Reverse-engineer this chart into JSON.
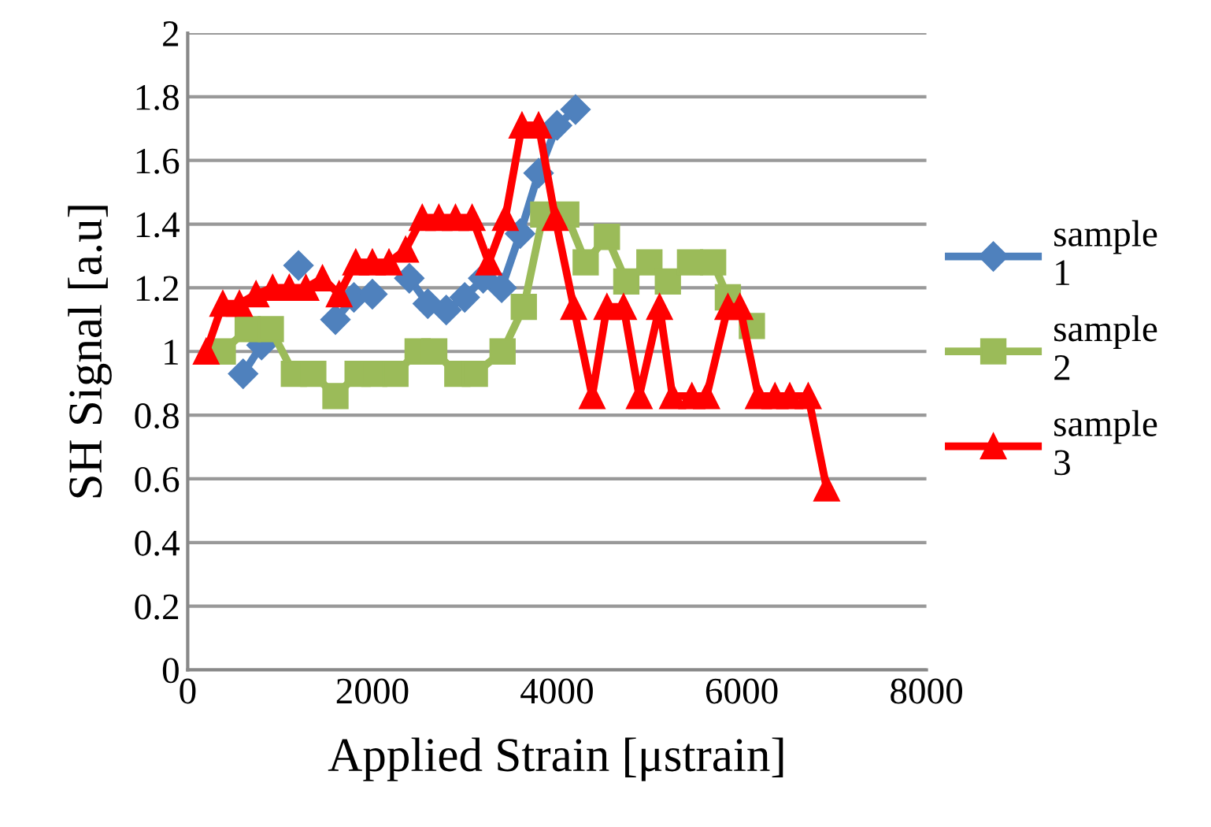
{
  "chart_data": {
    "type": "line",
    "xlabel": "Applied Strain [μstrain]",
    "ylabel": "SH Signal [a.u]",
    "xlim": [
      0,
      8000
    ],
    "xticks": [
      0,
      2000,
      4000,
      6000,
      8000
    ],
    "ylim": [
      0,
      2
    ],
    "yticks": [
      0,
      0.2,
      0.4,
      0.6,
      0.8,
      1,
      1.2,
      1.4,
      1.6,
      1.8,
      2
    ],
    "grid": "y",
    "legend": "right",
    "line_style": "solid",
    "series": [
      {
        "name": "sample 1",
        "color": "#4f81bd",
        "marker": "diamond",
        "x": [
          600,
          800,
          1000,
          1200,
          1400,
          1600,
          1800,
          2000,
          2200,
          2400,
          2600,
          2800,
          3000,
          3200,
          3400,
          3600,
          3800,
          4000,
          4200
        ],
        "values": [
          0.93,
          1.02,
          null,
          1.27,
          null,
          1.1,
          1.17,
          1.18,
          null,
          1.23,
          1.15,
          1.13,
          1.17,
          1.23,
          1.2,
          1.37,
          1.56,
          1.71,
          1.76
        ]
      },
      {
        "name": "sample 2",
        "color": "#9bbb59",
        "marker": "square",
        "x": [
          380,
          650,
          900,
          1150,
          1360,
          1600,
          1840,
          2020,
          2250,
          2490,
          2670,
          2920,
          3110,
          3410,
          3640,
          3850,
          4100,
          4310,
          4540,
          4750,
          5000,
          5200,
          5440,
          5690,
          5850,
          6110
        ],
        "values": [
          1.0,
          1.07,
          1.07,
          0.93,
          0.93,
          0.86,
          0.93,
          0.93,
          0.93,
          1.0,
          1.0,
          0.93,
          0.93,
          1.0,
          1.14,
          1.43,
          1.43,
          1.28,
          1.36,
          1.22,
          1.28,
          1.22,
          1.28,
          1.28,
          1.17,
          1.08
        ]
      },
      {
        "name": "sample 3",
        "color": "#ff0000",
        "marker": "triangle",
        "x": [
          200,
          380,
          560,
          740,
          920,
          1100,
          1280,
          1460,
          1640,
          1820,
          2000,
          2180,
          2360,
          2540,
          2720,
          2900,
          3080,
          3260,
          3440,
          3620,
          3800,
          3980,
          4180,
          4380,
          4540,
          4720,
          4890,
          5110,
          5250,
          5460,
          5620,
          5850,
          5980,
          6180,
          6360,
          6520,
          6720,
          6920
        ],
        "values": [
          1.0,
          1.15,
          1.15,
          1.18,
          1.2,
          1.2,
          1.2,
          1.23,
          1.18,
          1.28,
          1.28,
          1.28,
          1.32,
          1.42,
          1.42,
          1.42,
          1.42,
          1.28,
          1.42,
          1.71,
          1.71,
          1.42,
          1.14,
          0.86,
          1.14,
          1.14,
          0.86,
          1.14,
          0.86,
          0.86,
          0.86,
          1.14,
          1.14,
          0.86,
          0.86,
          0.86,
          0.86,
          0.57
        ]
      }
    ]
  }
}
